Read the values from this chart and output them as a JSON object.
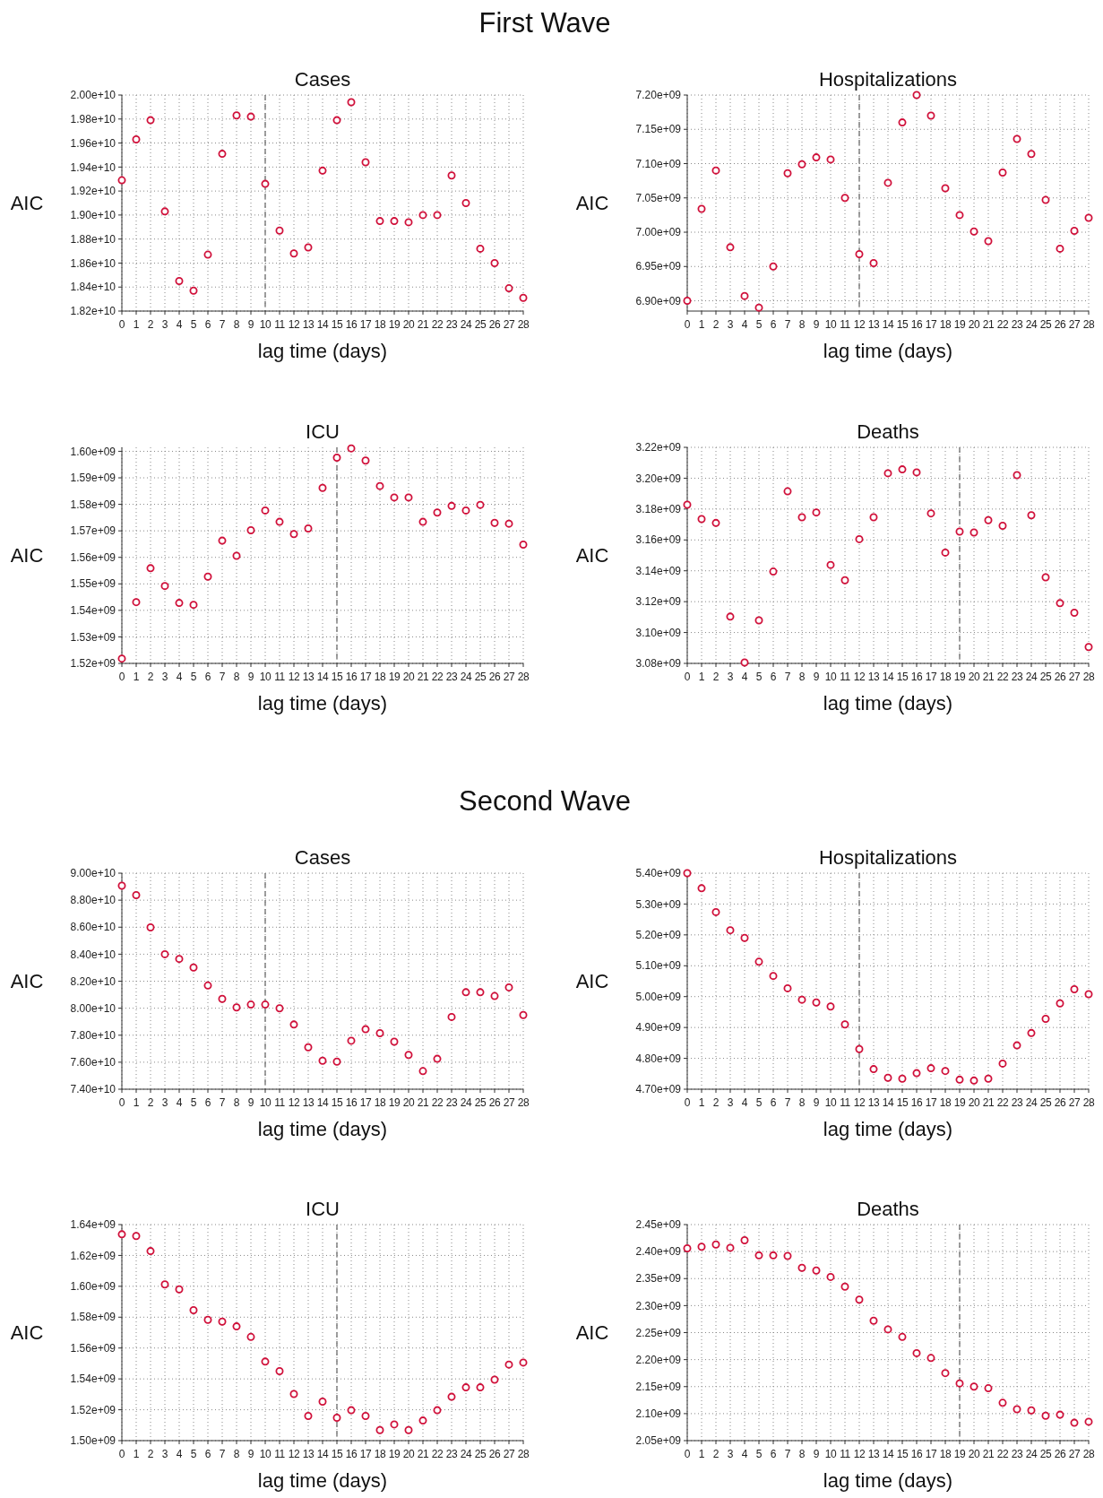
{
  "chart_data": [
    {
      "type": "scatter",
      "title": "Cases",
      "annotations": [
        "First Wave"
      ],
      "xlabel": "lag time (days)",
      "ylabel": "AIC",
      "marker": "circle",
      "grid": true,
      "xlim": [
        0,
        28
      ],
      "xticks": [
        0,
        1,
        2,
        3,
        4,
        5,
        6,
        7,
        8,
        9,
        10,
        11,
        12,
        13,
        14,
        15,
        16,
        17,
        18,
        19,
        20,
        21,
        22,
        23,
        24,
        25,
        26,
        27,
        28
      ],
      "ylim": [
        18200000000.0,
        20000000000.0
      ],
      "yticks": [
        {
          "value": 18200000000.0,
          "label": "1.82e+10"
        },
        {
          "value": 18400000000.0,
          "label": "1.84e+10"
        },
        {
          "value": 18600000000.0,
          "label": "1.86e+10"
        },
        {
          "value": 18800000000.0,
          "label": "1.88e+10"
        },
        {
          "value": 19000000000.0,
          "label": "1.90e+10"
        },
        {
          "value": 19200000000.0,
          "label": "1.92e+10"
        },
        {
          "value": 19400000000.0,
          "label": "1.94e+10"
        },
        {
          "value": 19600000000.0,
          "label": "1.96e+10"
        },
        {
          "value": 19800000000.0,
          "label": "1.98e+10"
        },
        {
          "value": 20000000000.0,
          "label": "2.00e+10"
        }
      ],
      "ref_lines": [
        {
          "axis": "x",
          "value": 10,
          "color": "#808080",
          "line_style": "dashed"
        }
      ],
      "x": [
        0,
        1,
        2,
        3,
        4,
        5,
        6,
        7,
        8,
        9,
        10,
        11,
        12,
        13,
        14,
        15,
        16,
        17,
        18,
        19,
        20,
        21,
        22,
        23,
        24,
        25,
        26,
        27,
        28
      ],
      "series": [
        {
          "color": "#d0103a",
          "values": [
            19290000000.0,
            19630000000.0,
            19790000000.0,
            19030000000.0,
            18450000000.0,
            18370000000.0,
            18670000000.0,
            19510000000.0,
            19830000000.0,
            19820000000.0,
            19260000000.0,
            18870000000.0,
            18680000000.0,
            18730000000.0,
            19370000000.0,
            19790000000.0,
            19940000000.0,
            19440000000.0,
            18950000000.0,
            18950000000.0,
            18940000000.0,
            19000000000.0,
            19000000000.0,
            19330000000.0,
            19100000000.0,
            18720000000.0,
            18600000000.0,
            18390000000.0,
            18310000000.0
          ]
        }
      ]
    },
    {
      "type": "scatter",
      "title": "Hospitalizations",
      "xlabel": "lag time (days)",
      "ylabel": "AIC",
      "marker": "circle",
      "grid": true,
      "xlim": [
        0,
        28
      ],
      "xticks": [
        0,
        1,
        2,
        3,
        4,
        5,
        6,
        7,
        8,
        9,
        10,
        11,
        12,
        13,
        14,
        15,
        16,
        17,
        18,
        19,
        20,
        21,
        22,
        23,
        24,
        25,
        26,
        27,
        28
      ],
      "ylim": [
        6885000000.0,
        7200000000.0
      ],
      "yticks": [
        {
          "value": 6900000000.0,
          "label": "6.90e+09"
        },
        {
          "value": 6950000000.0,
          "label": "6.95e+09"
        },
        {
          "value": 7000000000.0,
          "label": "7.00e+09"
        },
        {
          "value": 7050000000.0,
          "label": "7.05e+09"
        },
        {
          "value": 7100000000.0,
          "label": "7.10e+09"
        },
        {
          "value": 7150000000.0,
          "label": "7.15e+09"
        },
        {
          "value": 7200000000.0,
          "label": "7.20e+09"
        }
      ],
      "ref_lines": [
        {
          "axis": "x",
          "value": 12,
          "color": "#808080",
          "line_style": "dashed"
        }
      ],
      "x": [
        0,
        1,
        2,
        3,
        4,
        5,
        6,
        7,
        8,
        9,
        10,
        11,
        12,
        13,
        14,
        15,
        16,
        17,
        18,
        19,
        20,
        21,
        22,
        23,
        24,
        25,
        26,
        27,
        28
      ],
      "series": [
        {
          "color": "#d0103a",
          "values": [
            6900000000.0,
            7034000000.0,
            7090000000.0,
            6978000000.0,
            6907000000.0,
            6890000000.0,
            6950000000.0,
            7086000000.0,
            7099000000.0,
            7109000000.0,
            7106000000.0,
            7050000000.0,
            6968000000.0,
            6955000000.0,
            7072000000.0,
            7160000000.0,
            7200000000.0,
            7170000000.0,
            7064000000.0,
            7025000000.0,
            7001000000.0,
            6987000000.0,
            7087000000.0,
            7136000000.0,
            7114000000.0,
            7047000000.0,
            6976000000.0,
            7002000000.0,
            7021000000.0
          ]
        }
      ]
    },
    {
      "type": "scatter",
      "title": "ICU",
      "xlabel": "lag time (days)",
      "ylabel": "AIC",
      "marker": "circle",
      "grid": true,
      "xlim": [
        0,
        28
      ],
      "xticks": [
        0,
        1,
        2,
        3,
        4,
        5,
        6,
        7,
        8,
        9,
        10,
        11,
        12,
        13,
        14,
        15,
        16,
        17,
        18,
        19,
        20,
        21,
        22,
        23,
        24,
        25,
        26,
        27,
        28
      ],
      "ylim": [
        1520000000.0,
        1601500000.0
      ],
      "yticks": [
        {
          "value": 1520000000.0,
          "label": "1.52e+09"
        },
        {
          "value": 1530000000.0,
          "label": "1.53e+09"
        },
        {
          "value": 1540000000.0,
          "label": "1.54e+09"
        },
        {
          "value": 1550000000.0,
          "label": "1.55e+09"
        },
        {
          "value": 1560000000.0,
          "label": "1.56e+09"
        },
        {
          "value": 1570000000.0,
          "label": "1.57e+09"
        },
        {
          "value": 1580000000.0,
          "label": "1.58e+09"
        },
        {
          "value": 1590000000.0,
          "label": "1.59e+09"
        },
        {
          "value": 1600000000.0,
          "label": "1.60e+09"
        }
      ],
      "ref_lines": [
        {
          "axis": "x",
          "value": 15,
          "color": "#808080",
          "line_style": "dashed"
        }
      ],
      "x": [
        0,
        1,
        2,
        3,
        4,
        5,
        6,
        7,
        8,
        9,
        10,
        11,
        12,
        13,
        14,
        15,
        16,
        17,
        18,
        19,
        20,
        21,
        22,
        23,
        24,
        25,
        26,
        27,
        28
      ],
      "series": [
        {
          "color": "#d0103a",
          "values": [
            1521800000.0,
            1543100000.0,
            1555900000.0,
            1549200000.0,
            1542800000.0,
            1542100000.0,
            1552700000.0,
            1566300000.0,
            1560600000.0,
            1570200000.0,
            1577700000.0,
            1573400000.0,
            1568800000.0,
            1570900000.0,
            1586200000.0,
            1597600000.0,
            1601100000.0,
            1596500000.0,
            1586900000.0,
            1582600000.0,
            1582600000.0,
            1573400000.0,
            1576900000.0,
            1579400000.0,
            1577700000.0,
            1579800000.0,
            1573000000.0,
            1572700000.0,
            1564800000.0
          ]
        }
      ]
    },
    {
      "type": "scatter",
      "title": "Deaths",
      "xlabel": "lag time (days)",
      "ylabel": "AIC",
      "marker": "circle",
      "grid": true,
      "xlim": [
        0,
        28
      ],
      "xticks": [
        0,
        1,
        2,
        3,
        4,
        5,
        6,
        7,
        8,
        9,
        10,
        11,
        12,
        13,
        14,
        15,
        16,
        17,
        18,
        19,
        20,
        21,
        22,
        23,
        24,
        25,
        26,
        27,
        28
      ],
      "ylim": [
        3080000000.0,
        3220000000.0
      ],
      "yticks": [
        {
          "value": 3080000000.0,
          "label": "3.08e+09"
        },
        {
          "value": 3100000000.0,
          "label": "3.10e+09"
        },
        {
          "value": 3120000000.0,
          "label": "3.12e+09"
        },
        {
          "value": 3140000000.0,
          "label": "3.14e+09"
        },
        {
          "value": 3160000000.0,
          "label": "3.16e+09"
        },
        {
          "value": 3180000000.0,
          "label": "3.18e+09"
        },
        {
          "value": 3200000000.0,
          "label": "3.20e+09"
        },
        {
          "value": 3220000000.0,
          "label": "3.22e+09"
        }
      ],
      "ref_lines": [
        {
          "axis": "x",
          "value": 19,
          "color": "#808080",
          "line_style": "dashed"
        }
      ],
      "x": [
        0,
        1,
        2,
        3,
        4,
        5,
        6,
        7,
        8,
        9,
        10,
        11,
        12,
        13,
        14,
        15,
        16,
        17,
        18,
        19,
        20,
        21,
        22,
        23,
        24,
        25,
        26,
        27,
        28
      ],
      "series": [
        {
          "color": "#d0103a",
          "values": [
            3182800000.0,
            3173500000.0,
            3171000000.0,
            3110300000.0,
            3080600000.0,
            3107900000.0,
            3139500000.0,
            3191500000.0,
            3174700000.0,
            3177800000.0,
            3143800000.0,
            3133900000.0,
            3160500000.0,
            3174700000.0,
            3203200000.0,
            3205700000.0,
            3203800000.0,
            3177200000.0,
            3151800000.0,
            3165400000.0,
            3164800000.0,
            3172800000.0,
            3169200000.0,
            3202000000.0,
            3176000000.0,
            3135800000.0,
            3119000000.0,
            3112800000.0,
            3090600000.0
          ]
        }
      ]
    },
    {
      "type": "scatter",
      "title": "Cases",
      "annotations": [
        "Second Wave"
      ],
      "xlabel": "lag time (days)",
      "ylabel": "AIC",
      "marker": "circle",
      "grid": true,
      "xlim": [
        0,
        28
      ],
      "xticks": [
        0,
        1,
        2,
        3,
        4,
        5,
        6,
        7,
        8,
        9,
        10,
        11,
        12,
        13,
        14,
        15,
        16,
        17,
        18,
        19,
        20,
        21,
        22,
        23,
        24,
        25,
        26,
        27,
        28
      ],
      "ylim": [
        74000000000.0,
        90000000000.0
      ],
      "yticks": [
        {
          "value": 74000000000.0,
          "label": "7.40e+10"
        },
        {
          "value": 76000000000.0,
          "label": "7.60e+10"
        },
        {
          "value": 78000000000.0,
          "label": "7.80e+10"
        },
        {
          "value": 80000000000.0,
          "label": "8.00e+10"
        },
        {
          "value": 82000000000.0,
          "label": "8.20e+10"
        },
        {
          "value": 84000000000.0,
          "label": "8.40e+10"
        },
        {
          "value": 86000000000.0,
          "label": "8.60e+10"
        },
        {
          "value": 88000000000.0,
          "label": "8.80e+10"
        },
        {
          "value": 90000000000.0,
          "label": "9.00e+10"
        }
      ],
      "ref_lines": [
        {
          "axis": "x",
          "value": 10,
          "color": "#808080",
          "line_style": "dashed"
        }
      ],
      "x": [
        0,
        1,
        2,
        3,
        4,
        5,
        6,
        7,
        8,
        9,
        10,
        11,
        12,
        13,
        14,
        15,
        16,
        17,
        18,
        19,
        20,
        21,
        22,
        23,
        24,
        25,
        26,
        27,
        28
      ],
      "series": [
        {
          "color": "#d0103a",
          "values": [
            89070000000.0,
            88370000000.0,
            85980000000.0,
            84000000000.0,
            83650000000.0,
            83010000000.0,
            81680000000.0,
            80690000000.0,
            80060000000.0,
            80270000000.0,
            80270000000.0,
            79990000000.0,
            78790000000.0,
            77100000000.0,
            76110000000.0,
            76040000000.0,
            77590000000.0,
            78440000000.0,
            78150000000.0,
            77520000000.0,
            76540000000.0,
            75340000000.0,
            76250000000.0,
            79350000000.0,
            81180000000.0,
            81180000000.0,
            80900000000.0,
            81540000000.0,
            79490000000.0
          ]
        }
      ]
    },
    {
      "type": "scatter",
      "title": "Hospitalizations",
      "xlabel": "lag time (days)",
      "ylabel": "AIC",
      "marker": "circle",
      "grid": true,
      "xlim": [
        0,
        28
      ],
      "xticks": [
        0,
        1,
        2,
        3,
        4,
        5,
        6,
        7,
        8,
        9,
        10,
        11,
        12,
        13,
        14,
        15,
        16,
        17,
        18,
        19,
        20,
        21,
        22,
        23,
        24,
        25,
        26,
        27,
        28
      ],
      "ylim": [
        4700000000.0,
        5400000000.0
      ],
      "yticks": [
        {
          "value": 4700000000.0,
          "label": "4.70e+09"
        },
        {
          "value": 4800000000.0,
          "label": "4.80e+09"
        },
        {
          "value": 4900000000.0,
          "label": "4.90e+09"
        },
        {
          "value": 5000000000.0,
          "label": "5.00e+09"
        },
        {
          "value": 5100000000.0,
          "label": "5.10e+09"
        },
        {
          "value": 5200000000.0,
          "label": "5.20e+09"
        },
        {
          "value": 5300000000.0,
          "label": "5.30e+09"
        },
        {
          "value": 5400000000.0,
          "label": "5.40e+09"
        }
      ],
      "ref_lines": [
        {
          "axis": "x",
          "value": 12,
          "color": "#808080",
          "line_style": "dashed"
        }
      ],
      "x": [
        0,
        1,
        2,
        3,
        4,
        5,
        6,
        7,
        8,
        9,
        10,
        11,
        12,
        13,
        14,
        15,
        16,
        17,
        18,
        19,
        20,
        21,
        22,
        23,
        24,
        25,
        26,
        27,
        28
      ],
      "series": [
        {
          "color": "#d0103a",
          "values": [
            5400000000.0,
            5351000000.0,
            5274000000.0,
            5215000000.0,
            5190000000.0,
            5113000000.0,
            5067000000.0,
            5027000000.0,
            4990000000.0,
            4981000000.0,
            4968000000.0,
            4910000000.0,
            4830000000.0,
            4765000000.0,
            4737000000.0,
            4734000000.0,
            4752000000.0,
            4768000000.0,
            4759000000.0,
            4731000000.0,
            4728000000.0,
            4734000000.0,
            4783000000.0,
            4842000000.0,
            4882000000.0,
            4928000000.0,
            4978000000.0,
            5024000000.0,
            5008000000.0
          ]
        }
      ]
    },
    {
      "type": "scatter",
      "title": "ICU",
      "xlabel": "lag time (days)",
      "ylabel": "AIC",
      "marker": "circle",
      "grid": true,
      "xlim": [
        0,
        28
      ],
      "xticks": [
        0,
        1,
        2,
        3,
        4,
        5,
        6,
        7,
        8,
        9,
        10,
        11,
        12,
        13,
        14,
        15,
        16,
        17,
        18,
        19,
        20,
        21,
        22,
        23,
        24,
        25,
        26,
        27,
        28
      ],
      "ylim": [
        1500000000.0,
        1640000000.0
      ],
      "yticks": [
        {
          "value": 1500000000.0,
          "label": "1.50e+09"
        },
        {
          "value": 1520000000.0,
          "label": "1.52e+09"
        },
        {
          "value": 1540000000.0,
          "label": "1.54e+09"
        },
        {
          "value": 1560000000.0,
          "label": "1.56e+09"
        },
        {
          "value": 1580000000.0,
          "label": "1.58e+09"
        },
        {
          "value": 1600000000.0,
          "label": "1.60e+09"
        },
        {
          "value": 1620000000.0,
          "label": "1.62e+09"
        },
        {
          "value": 1640000000.0,
          "label": "1.64e+09"
        }
      ],
      "ref_lines": [
        {
          "axis": "x",
          "value": 15,
          "color": "#808080",
          "line_style": "dashed"
        }
      ],
      "x": [
        0,
        1,
        2,
        3,
        4,
        5,
        6,
        7,
        8,
        9,
        10,
        11,
        12,
        13,
        14,
        15,
        16,
        17,
        18,
        19,
        20,
        21,
        22,
        23,
        24,
        25,
        26,
        27,
        28
      ],
      "series": [
        {
          "color": "#d0103a",
          "values": [
            1633700000.0,
            1632600000.0,
            1622800000.0,
            1601200000.0,
            1598000000.0,
            1584500000.0,
            1578300000.0,
            1577100000.0,
            1574000000.0,
            1567200000.0,
            1551200000.0,
            1545000000.0,
            1530200000.0,
            1516000000.0,
            1525300000.0,
            1514800000.0,
            1519700000.0,
            1516000000.0,
            1506800000.0,
            1510500000.0,
            1506800000.0,
            1513000000.0,
            1519700000.0,
            1528400000.0,
            1534500000.0,
            1534500000.0,
            1539500000.0,
            1549300000.0,
            1550600000.0
          ]
        }
      ]
    },
    {
      "type": "scatter",
      "title": "Deaths",
      "xlabel": "lag time (days)",
      "ylabel": "AIC",
      "marker": "circle",
      "grid": true,
      "xlim": [
        0,
        28
      ],
      "xticks": [
        0,
        1,
        2,
        3,
        4,
        5,
        6,
        7,
        8,
        9,
        10,
        11,
        12,
        13,
        14,
        15,
        16,
        17,
        18,
        19,
        20,
        21,
        22,
        23,
        24,
        25,
        26,
        27,
        28
      ],
      "ylim": [
        2050000000.0,
        2450000000.0
      ],
      "yticks": [
        {
          "value": 2050000000.0,
          "label": "2.05e+09"
        },
        {
          "value": 2100000000.0,
          "label": "2.10e+09"
        },
        {
          "value": 2150000000.0,
          "label": "2.15e+09"
        },
        {
          "value": 2200000000.0,
          "label": "2.20e+09"
        },
        {
          "value": 2250000000.0,
          "label": "2.25e+09"
        },
        {
          "value": 2300000000.0,
          "label": "2.30e+09"
        },
        {
          "value": 2350000000.0,
          "label": "2.35e+09"
        },
        {
          "value": 2400000000.0,
          "label": "2.40e+09"
        },
        {
          "value": 2450000000.0,
          "label": "2.45e+09"
        }
      ],
      "ref_lines": [
        {
          "axis": "x",
          "value": 19,
          "color": "#808080",
          "line_style": "dashed"
        }
      ],
      "x": [
        0,
        1,
        2,
        3,
        4,
        5,
        6,
        7,
        8,
        9,
        10,
        11,
        12,
        13,
        14,
        15,
        16,
        17,
        18,
        19,
        20,
        21,
        22,
        23,
        24,
        25,
        26,
        27,
        28
      ],
      "series": [
        {
          "color": "#d0103a",
          "values": [
            2406000000.0,
            2409000000.0,
            2413000000.0,
            2407000000.0,
            2421000000.0,
            2393000000.0,
            2393000000.0,
            2392000000.0,
            2370000000.0,
            2365000000.0,
            2353000000.0,
            2335000000.0,
            2311000000.0,
            2272000000.0,
            2256000000.0,
            2242000000.0,
            2212000000.0,
            2203000000.0,
            2175000000.0,
            2156000000.0,
            2150000000.0,
            2147000000.0,
            2120000000.0,
            2108000000.0,
            2106000000.0,
            2096000000.0,
            2098000000.0,
            2083000000.0,
            2085000000.0
          ]
        }
      ]
    }
  ]
}
